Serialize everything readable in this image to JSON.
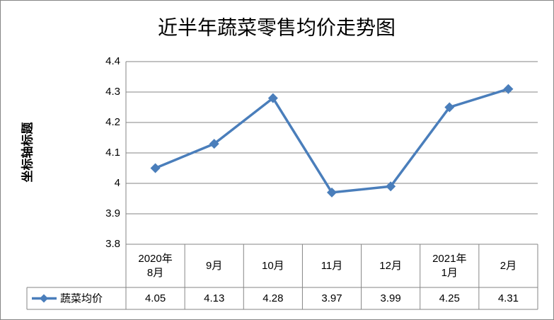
{
  "chart_data": {
    "type": "line",
    "title": "近半年蔬菜零售均价走势图",
    "y_label": "坐标轴标题",
    "categories": [
      "2020年\n8月",
      "9月",
      "10月",
      "11月",
      "12月",
      "2021年\n1月",
      "2月"
    ],
    "series": [
      {
        "name": "蔬菜均价",
        "color": "#4a7ebb",
        "values": [
          4.05,
          4.13,
          4.28,
          3.97,
          3.99,
          4.25,
          4.31
        ]
      }
    ],
    "ylim": [
      3.8,
      4.4
    ],
    "yticks": [
      3.8,
      3.9,
      4,
      4.1,
      4.2,
      4.3,
      4.4
    ],
    "grid": true,
    "data_table": true
  }
}
